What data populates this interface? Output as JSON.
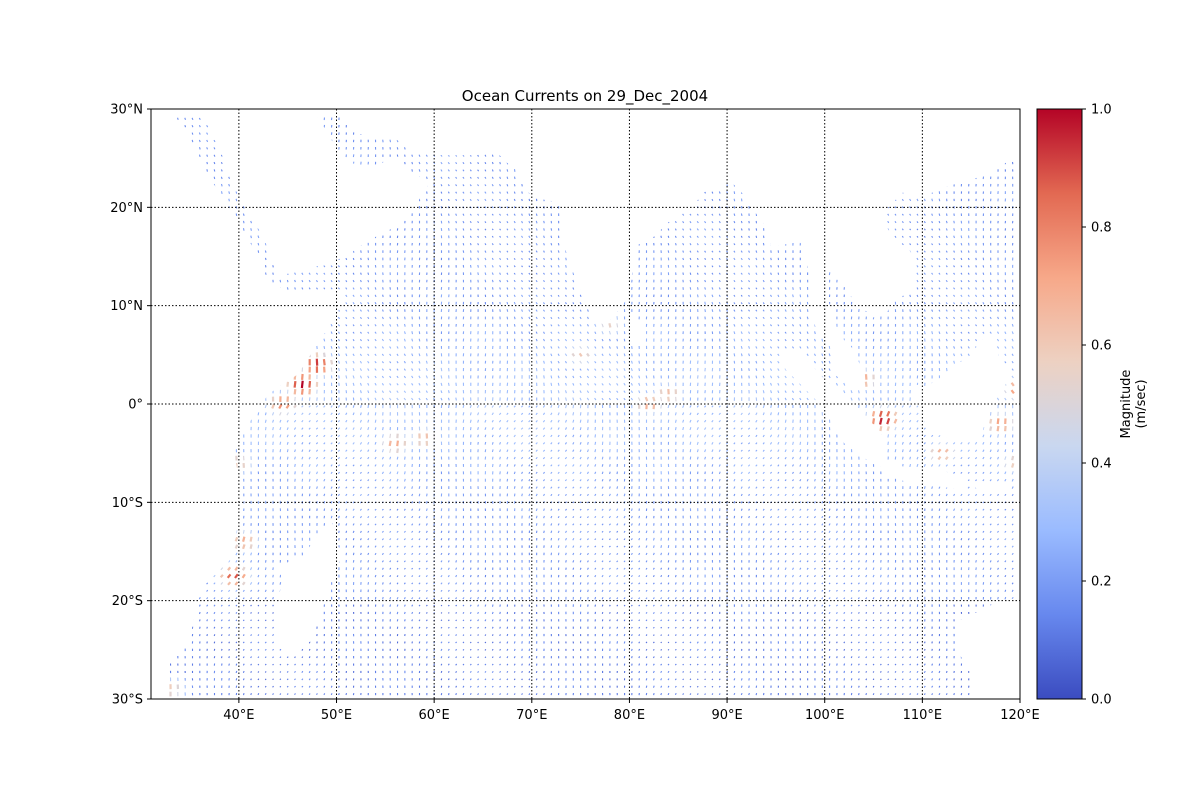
{
  "chart_data": {
    "type": "quiver-map",
    "title": "Ocean Currents on 29_Dec_2004",
    "x_axis": {
      "range": [
        31,
        120
      ],
      "ticks": [
        {
          "value": 40,
          "label": "40°E"
        },
        {
          "value": 50,
          "label": "50°E"
        },
        {
          "value": 60,
          "label": "60°E"
        },
        {
          "value": 70,
          "label": "70°E"
        },
        {
          "value": 80,
          "label": "80°E"
        },
        {
          "value": 90,
          "label": "90°E"
        },
        {
          "value": 100,
          "label": "100°E"
        },
        {
          "value": 110,
          "label": "110°E"
        },
        {
          "value": 120,
          "label": "120°E"
        }
      ]
    },
    "y_axis": {
      "range": [
        -30,
        30
      ],
      "ticks": [
        {
          "value": 30,
          "label": "30°N"
        },
        {
          "value": 20,
          "label": "20°N"
        },
        {
          "value": 10,
          "label": "10°N"
        },
        {
          "value": 0,
          "label": "0°"
        },
        {
          "value": -10,
          "label": "10°S"
        },
        {
          "value": -20,
          "label": "20°S"
        },
        {
          "value": -30,
          "label": "30°S"
        }
      ]
    },
    "grid": true,
    "grid_style": "dotted",
    "colorbar": {
      "label_line1": "Magnitude",
      "label_line2": "(m/sec)",
      "range": [
        0,
        1
      ],
      "ticks": [
        {
          "value": 0.0,
          "label": "0.0"
        },
        {
          "value": 0.2,
          "label": "0.2"
        },
        {
          "value": 0.4,
          "label": "0.4"
        },
        {
          "value": 0.6,
          "label": "0.6"
        },
        {
          "value": 0.8,
          "label": "0.8"
        },
        {
          "value": 1.0,
          "label": "1.0"
        }
      ],
      "colormap": "coolwarm",
      "stops": [
        "#3b4cc0",
        "#6788ee",
        "#9abbff",
        "#c9d7f0",
        "#edd1c2",
        "#f7a889",
        "#e26952",
        "#b40426"
      ]
    },
    "hotspots": [
      {
        "lon": 46.5,
        "lat": 2.0,
        "magnitude": 1.0
      },
      {
        "lon": 48.0,
        "lat": 4.0,
        "magnitude": 0.95
      },
      {
        "lon": 44.5,
        "lat": 0.0,
        "magnitude": 0.8
      },
      {
        "lon": 56.0,
        "lat": -4.0,
        "magnitude": 0.7
      },
      {
        "lon": 59.0,
        "lat": -3.5,
        "magnitude": 0.65
      },
      {
        "lon": 82.0,
        "lat": 0.0,
        "magnitude": 0.7
      },
      {
        "lon": 84.0,
        "lat": 1.0,
        "magnitude": 0.65
      },
      {
        "lon": 106.0,
        "lat": -1.5,
        "magnitude": 1.0
      },
      {
        "lon": 104.0,
        "lat": 2.5,
        "magnitude": 0.7
      },
      {
        "lon": 112.0,
        "lat": -5.0,
        "magnitude": 0.7
      },
      {
        "lon": 118.0,
        "lat": -2.0,
        "magnitude": 0.75
      },
      {
        "lon": 120.0,
        "lat": 1.5,
        "magnitude": 0.85
      },
      {
        "lon": 39.5,
        "lat": -17.5,
        "magnitude": 0.9
      },
      {
        "lon": 40.5,
        "lat": -14.0,
        "magnitude": 0.7
      },
      {
        "lon": 40.0,
        "lat": -6.0,
        "magnitude": 0.6
      },
      {
        "lon": 75.0,
        "lat": 5.0,
        "magnitude": 0.6
      },
      {
        "lon": 78.0,
        "lat": 8.0,
        "magnitude": 0.55
      },
      {
        "lon": 119.5,
        "lat": -6.0,
        "magnitude": 0.6
      },
      {
        "lon": 33.0,
        "lat": -29.0,
        "magnitude": 0.6
      }
    ],
    "land_color": "#ffffff"
  }
}
